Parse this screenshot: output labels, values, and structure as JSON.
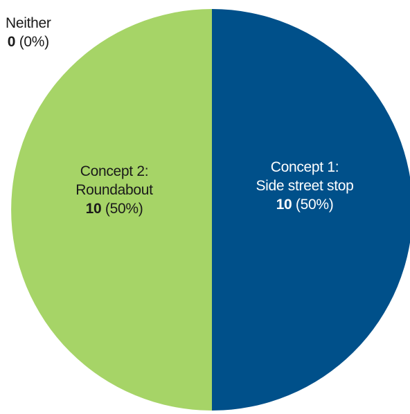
{
  "chart_data": {
    "type": "pie",
    "title": "",
    "slices": [
      {
        "key": "concept1",
        "line1": "Concept 1:",
        "line2": "Side street stop",
        "value": 10,
        "value_label": "10",
        "percent_label": "(50%)",
        "color": "#00508a"
      },
      {
        "key": "concept2",
        "line1": "Concept 2:",
        "line2": "Roundabout",
        "value": 10,
        "value_label": "10",
        "percent_label": "(50%)",
        "color": "#a6d467"
      },
      {
        "key": "neither",
        "line1": "Neither",
        "line2": "",
        "value": 0,
        "value_label": "0",
        "percent_label": "(0%)",
        "color": "#7f7f7f"
      }
    ]
  }
}
